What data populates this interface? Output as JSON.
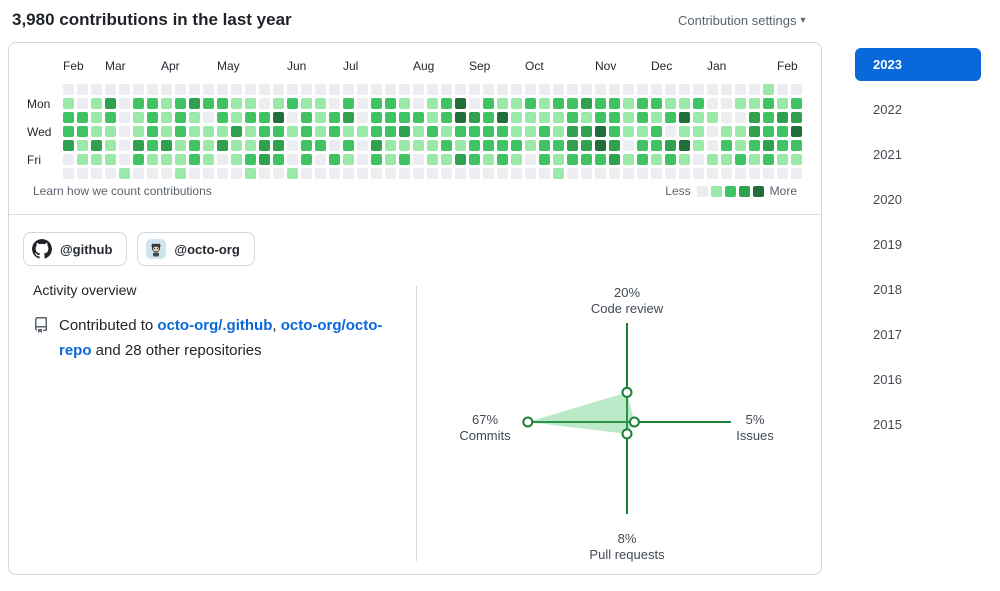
{
  "header": {
    "title": "3,980 contributions in the last year",
    "settings_label": "Contribution settings",
    "settings_caret": "▾"
  },
  "calendar": {
    "months": [
      {
        "label": "Feb",
        "week": 0
      },
      {
        "label": "Mar",
        "week": 3
      },
      {
        "label": "Apr",
        "week": 7
      },
      {
        "label": "May",
        "week": 11
      },
      {
        "label": "Jun",
        "week": 16
      },
      {
        "label": "Jul",
        "week": 20
      },
      {
        "label": "Aug",
        "week": 25
      },
      {
        "label": "Sep",
        "week": 29
      },
      {
        "label": "Oct",
        "week": 33
      },
      {
        "label": "Nov",
        "week": 38
      },
      {
        "label": "Dec",
        "week": 42
      },
      {
        "label": "Jan",
        "week": 46
      },
      {
        "label": "Feb",
        "week": 51
      }
    ],
    "day_labels": [
      {
        "label": "Mon",
        "row": 1
      },
      {
        "label": "Wed",
        "row": 3
      },
      {
        "label": "Fri",
        "row": 5
      }
    ],
    "level_colors": [
      "#ebedf0",
      "#9be9a8",
      "#40c463",
      "#30a14e",
      "#216e39"
    ],
    "weeks": [
      "0122300",
      "0022110",
      "0111310",
      "0321110",
      "0000001",
      "0211320",
      "0222210",
      "0111310",
      "0222111",
      "0311220",
      "0201110",
      "0221300",
      "0113110",
      "0121121",
      "0022330",
      "0142320",
      "0201001",
      "0122220",
      "0111200",
      "0022020",
      "0231210",
      "0001000",
      "0222320",
      "0222110",
      "0123120",
      "0021100",
      "0112110",
      "0221210",
      "0442130",
      "0032220",
      "0222210",
      "0142220",
      "0111210",
      "0211100",
      "0112220",
      "0211211",
      "0223320",
      "0313320",
      "0224420",
      "0222330",
      "0111010",
      "0221220",
      "0212210",
      "0120320",
      "0141410",
      "0211100",
      "0010010",
      "0001210",
      "0101120",
      "0133210",
      "1222320",
      "0132210",
      "0234210"
    ],
    "footer_link": "Learn how we count contributions",
    "legend": {
      "less": "Less",
      "more": "More"
    }
  },
  "org_filters": [
    {
      "label": "@github"
    },
    {
      "label": "@octo-org"
    }
  ],
  "activity": {
    "heading": "Activity overview",
    "contributed_prefix": "Contributed to ",
    "repo1": "octo-org/.github",
    "separator": ", ",
    "repo2": "octo-org/octo-repo",
    "suffix": " and 28 other repositories"
  },
  "chart_data": {
    "type": "radar",
    "title": "Activity overview breakdown",
    "axes": [
      {
        "label": "Code review",
        "percent": 20,
        "pct_label": "20%",
        "direction": "up"
      },
      {
        "label": "Issues",
        "percent": 5,
        "pct_label": "5%",
        "direction": "right"
      },
      {
        "label": "Pull requests",
        "percent": 8,
        "pct_label": "8%",
        "direction": "down"
      },
      {
        "label": "Commits",
        "percent": 67,
        "pct_label": "67%",
        "direction": "left"
      }
    ],
    "axis_color": "#1a7f37",
    "fill_color": "rgba(64,196,99,0.35)"
  },
  "years": {
    "selected": "2023",
    "items": [
      "2023",
      "2022",
      "2021",
      "2020",
      "2019",
      "2018",
      "2017",
      "2016",
      "2015"
    ]
  },
  "colors": {
    "link": "#0969da",
    "selected_year_bg": "#0969da",
    "border": "#d0d7de",
    "muted": "#59636e"
  }
}
